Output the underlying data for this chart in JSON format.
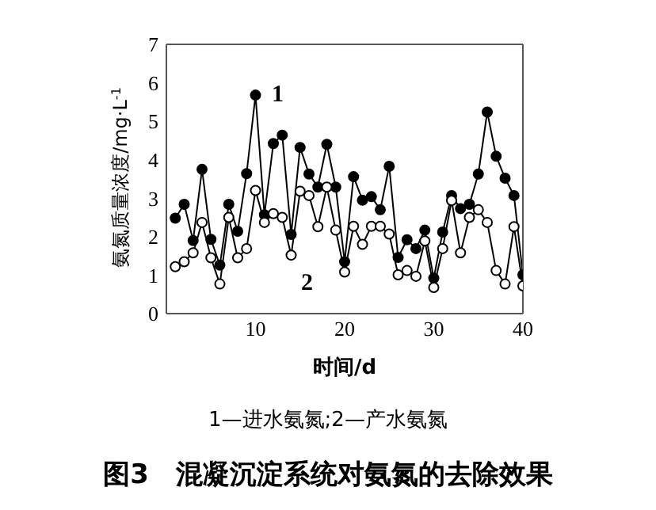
{
  "chart_data": {
    "type": "line",
    "title": "图3　混凝沉淀系统对氨氮的去除效果",
    "xlabel": "时间/d",
    "ylabel": "氨氮质量浓度/mg·L$^{-1}$",
    "x": [
      1,
      2,
      3,
      4,
      5,
      6,
      7,
      8,
      9,
      10,
      11,
      12,
      13,
      14,
      15,
      16,
      17,
      18,
      19,
      20,
      21,
      22,
      23,
      24,
      25,
      26,
      27,
      28,
      29,
      30,
      31,
      32,
      33,
      34,
      35,
      36,
      37,
      38,
      39,
      40
    ],
    "series": [
      {
        "color": "#000000",
        "values": [
          2.48,
          2.84,
          1.9,
          3.75,
          1.93,
          1.26,
          2.84,
          2.14,
          3.64,
          5.68,
          2.57,
          4.42,
          4.64,
          2.06,
          4.32,
          3.63,
          3.29,
          4.4,
          3.29,
          1.35,
          3.56,
          2.95,
          3.04,
          2.7,
          3.83,
          1.46,
          1.92,
          1.69,
          2.17,
          0.92,
          2.12,
          3.07,
          2.73,
          2.84,
          3.63,
          5.24,
          4.09,
          3.52,
          3.07,
          1.01
        ]
      },
      {
        "color": "#000000",
        "values": [
          1.22,
          1.35,
          1.58,
          2.37,
          1.45,
          0.77,
          2.5,
          1.45,
          1.69,
          3.2,
          2.37,
          2.6,
          2.5,
          1.52,
          3.18,
          3.07,
          2.26,
          3.29,
          2.17,
          1.08,
          2.27,
          1.8,
          2.27,
          2.27,
          2.07,
          1.01,
          1.12,
          0.97,
          1.89,
          0.68,
          1.69,
          2.94,
          1.58,
          2.5,
          2.7,
          2.37,
          1.12,
          0.77,
          2.26,
          0.72
        ]
      }
    ],
    "xlim": [
      0,
      40
    ],
    "xticks": [
      10,
      20,
      30,
      40
    ],
    "ylim": [
      0,
      7
    ],
    "yticks": [
      0,
      1,
      2,
      3,
      4,
      5,
      6,
      7
    ],
    "marker": "circle",
    "line_style": "solid",
    "annotations": [
      {
        "text": "1",
        "x": 10,
        "y": 5.68
      },
      {
        "text": "2",
        "x": 14,
        "y": 1.52
      },
      "1—进水氨氮;2—产水氨氮"
    ]
  }
}
